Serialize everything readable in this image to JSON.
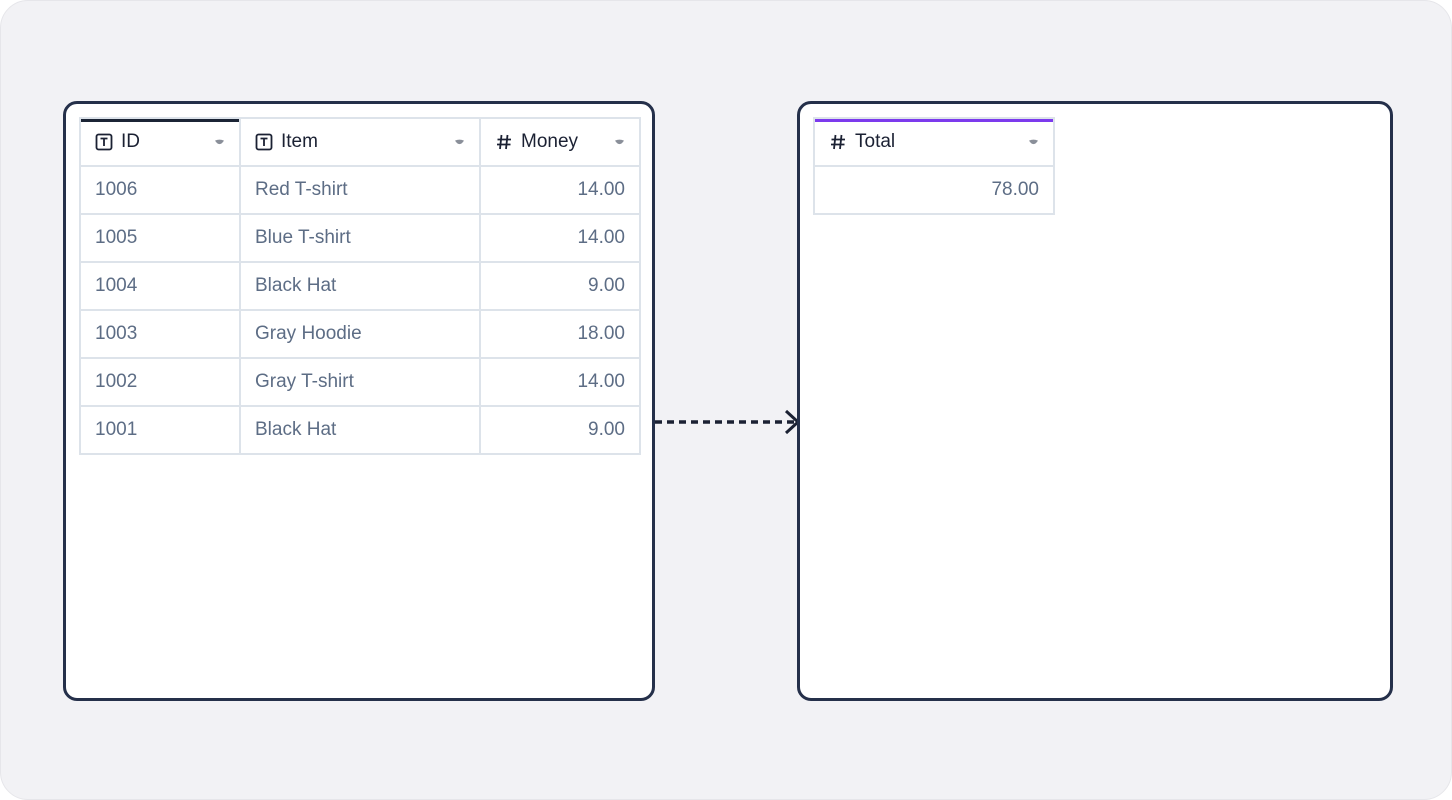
{
  "source_table": {
    "columns": [
      {
        "label": "ID",
        "icon": "text-field-icon"
      },
      {
        "label": "Item",
        "icon": "text-field-icon"
      },
      {
        "label": "Money",
        "icon": "hash-icon"
      }
    ],
    "rows": [
      {
        "id": "1006",
        "item": "Red T-shirt",
        "money": "14.00"
      },
      {
        "id": "1005",
        "item": "Blue T-shirt",
        "money": "14.00"
      },
      {
        "id": "1004",
        "item": "Black Hat",
        "money": "9.00"
      },
      {
        "id": "1003",
        "item": "Gray Hoodie",
        "money": "18.00"
      },
      {
        "id": "1002",
        "item": "Gray T-shirt",
        "money": "14.00"
      },
      {
        "id": "1001",
        "item": "Black Hat",
        "money": "9.00"
      }
    ]
  },
  "result_table": {
    "columns": [
      {
        "label": "Total",
        "icon": "hash-icon"
      }
    ],
    "rows": [
      {
        "total": "78.00"
      }
    ]
  },
  "colors": {
    "panel_border": "#25304a",
    "money_fill": "#f9f8ec",
    "total_fill": "#f3effd",
    "accent_purple": "#7c3aed"
  }
}
